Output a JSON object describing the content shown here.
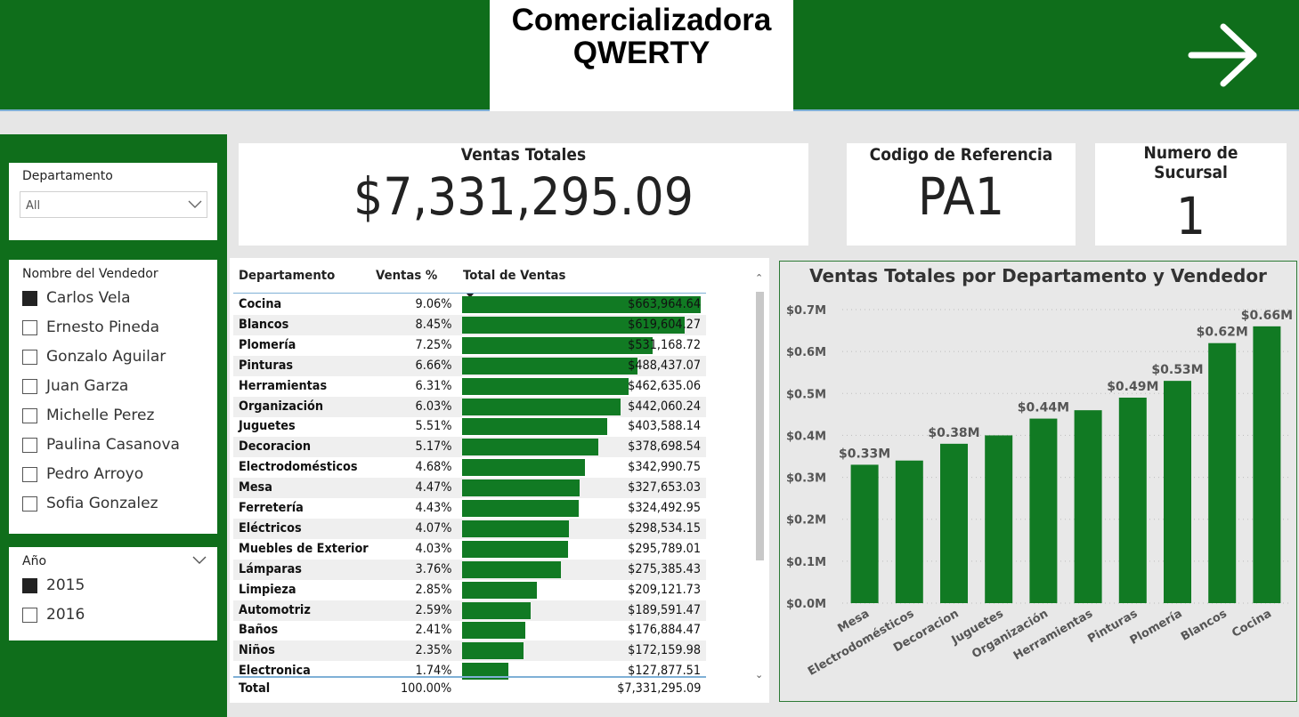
{
  "header": {
    "title_line1": "Comercializadora",
    "title_line2": "QWERTY",
    "next_icon": "arrow-right-icon"
  },
  "colors": {
    "brand_green": "#0f6e1b",
    "bar_green": "#117a23",
    "accent_blue": "#7fb0d6"
  },
  "slicers": {
    "departamento": {
      "title": "Departamento",
      "selected": "All"
    },
    "vendedor": {
      "title": "Nombre del Vendedor",
      "options": [
        {
          "label": "Carlos Vela",
          "checked": true
        },
        {
          "label": "Ernesto Pineda",
          "checked": false
        },
        {
          "label": "Gonzalo Aguilar",
          "checked": false
        },
        {
          "label": "Juan Garza",
          "checked": false
        },
        {
          "label": "Michelle Perez",
          "checked": false
        },
        {
          "label": "Paulina Casanova",
          "checked": false
        },
        {
          "label": "Pedro Arroyo",
          "checked": false
        },
        {
          "label": "Sofia Gonzalez",
          "checked": false
        }
      ]
    },
    "anio": {
      "title": "Año",
      "options": [
        {
          "label": "2015",
          "checked": true
        },
        {
          "label": "2016",
          "checked": false
        }
      ]
    }
  },
  "cards": {
    "ventas_totales": {
      "title": "Ventas Totales",
      "value": "$7,331,295.09"
    },
    "codigo_referencia": {
      "title": "Codigo de Referencia",
      "value": "PA1"
    },
    "numero_sucursal": {
      "title": "Numero de Sucursal",
      "value": "1"
    }
  },
  "table": {
    "headers": {
      "departamento": "Departamento",
      "ventas_pct": "Ventas %",
      "total": "Total de Ventas"
    },
    "rows": [
      {
        "dept": "Cocina",
        "pct": "9.06%",
        "total": "$663,964.64",
        "amount": 663964.64
      },
      {
        "dept": "Blancos",
        "pct": "8.45%",
        "total": "$619,604.27",
        "amount": 619604.27
      },
      {
        "dept": "Plomería",
        "pct": "7.25%",
        "total": "$531,168.72",
        "amount": 531168.72
      },
      {
        "dept": "Pinturas",
        "pct": "6.66%",
        "total": "$488,437.07",
        "amount": 488437.07
      },
      {
        "dept": "Herramientas",
        "pct": "6.31%",
        "total": "$462,635.06",
        "amount": 462635.06
      },
      {
        "dept": "Organización",
        "pct": "6.03%",
        "total": "$442,060.24",
        "amount": 442060.24
      },
      {
        "dept": "Juguetes",
        "pct": "5.51%",
        "total": "$403,588.14",
        "amount": 403588.14
      },
      {
        "dept": "Decoracion",
        "pct": "5.17%",
        "total": "$378,698.54",
        "amount": 378698.54
      },
      {
        "dept": "Electrodomésticos",
        "pct": "4.68%",
        "total": "$342,990.75",
        "amount": 342990.75
      },
      {
        "dept": "Mesa",
        "pct": "4.47%",
        "total": "$327,653.03",
        "amount": 327653.03
      },
      {
        "dept": "Ferretería",
        "pct": "4.43%",
        "total": "$324,492.95",
        "amount": 324492.95
      },
      {
        "dept": "Eléctricos",
        "pct": "4.07%",
        "total": "$298,534.15",
        "amount": 298534.15
      },
      {
        "dept": "Muebles de Exterior",
        "pct": "4.03%",
        "total": "$295,789.01",
        "amount": 295789.01
      },
      {
        "dept": "Lámparas",
        "pct": "3.76%",
        "total": "$275,385.43",
        "amount": 275385.43
      },
      {
        "dept": "Limpieza",
        "pct": "2.85%",
        "total": "$209,121.73",
        "amount": 209121.73
      },
      {
        "dept": "Automotriz",
        "pct": "2.59%",
        "total": "$189,591.47",
        "amount": 189591.47
      },
      {
        "dept": "Baños",
        "pct": "2.41%",
        "total": "$176,884.47",
        "amount": 176884.47
      },
      {
        "dept": "Niños",
        "pct": "2.35%",
        "total": "$172,159.98",
        "amount": 172159.98
      },
      {
        "dept": "Electronica",
        "pct": "1.74%",
        "total": "$127,877.51",
        "amount": 127877.51
      }
    ],
    "total_row": {
      "label": "Total",
      "pct": "100.00%",
      "total": "$7,331,295.09"
    }
  },
  "chart_data": {
    "type": "bar",
    "title": "Ventas Totales por Departamento y Vendedor",
    "categories": [
      "Mesa",
      "Electrodomésticos",
      "Decoracion",
      "Juguetes",
      "Organización",
      "Herramientas",
      "Pinturas",
      "Plomería",
      "Blancos",
      "Cocina"
    ],
    "values": [
      0.33,
      0.34,
      0.38,
      0.4,
      0.44,
      0.46,
      0.49,
      0.53,
      0.62,
      0.66
    ],
    "data_labels": [
      "$0.33M",
      "",
      "$0.38M",
      "",
      "$0.44M",
      "",
      "$0.49M",
      "$0.53M",
      "$0.62M",
      "$0.66M"
    ],
    "yticks": [
      "$0.0M",
      "$0.1M",
      "$0.2M",
      "$0.3M",
      "$0.4M",
      "$0.5M",
      "$0.6M",
      "$0.7M"
    ],
    "ylim": [
      0,
      0.7
    ],
    "grid": true,
    "bar_color": "#117a23"
  }
}
